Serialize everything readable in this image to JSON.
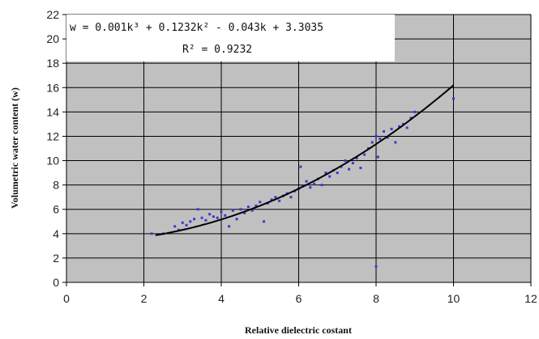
{
  "chart_data": {
    "type": "scatter",
    "title": "",
    "xlabel": "Relative dielectric costant",
    "ylabel": "Volumetric water content (w)",
    "xlim": [
      0,
      12
    ],
    "ylim": [
      0,
      22
    ],
    "x_ticks": [
      "0",
      "2",
      "4",
      "6",
      "8",
      "10",
      "12"
    ],
    "y_ticks": [
      "0",
      "2",
      "4",
      "6",
      "8",
      "10",
      "12",
      "14",
      "16",
      "18",
      "20",
      "22"
    ],
    "grid": true,
    "plot_background": "#c0c0c0",
    "point_color": "#3a3ad0",
    "trendline": {
      "type": "polynomial",
      "coefficients": [
        0.001,
        0.1232,
        -0.043,
        3.3035
      ],
      "x_range": [
        2.3,
        10
      ],
      "color": "#000000"
    },
    "annotation": {
      "equation": "w = 0.001k³ + 0.1232k² - 0.043k + 3.3035",
      "r2": "R² = 0.9232"
    },
    "points": [
      [
        2.2,
        4.0
      ],
      [
        2.5,
        4.0
      ],
      [
        2.8,
        4.6
      ],
      [
        2.9,
        4.3
      ],
      [
        3.0,
        4.9
      ],
      [
        3.1,
        4.7
      ],
      [
        3.2,
        5.0
      ],
      [
        3.3,
        5.2
      ],
      [
        3.4,
        6.0
      ],
      [
        3.5,
        5.3
      ],
      [
        3.6,
        5.1
      ],
      [
        3.7,
        5.6
      ],
      [
        3.8,
        5.4
      ],
      [
        3.9,
        5.3
      ],
      [
        4.0,
        5.8
      ],
      [
        4.1,
        5.5
      ],
      [
        4.2,
        4.6
      ],
      [
        4.3,
        5.9
      ],
      [
        4.4,
        5.2
      ],
      [
        4.5,
        6.0
      ],
      [
        4.6,
        5.7
      ],
      [
        4.7,
        6.2
      ],
      [
        4.8,
        5.9
      ],
      [
        4.9,
        6.3
      ],
      [
        5.0,
        6.6
      ],
      [
        5.1,
        5.0
      ],
      [
        5.2,
        6.5
      ],
      [
        5.3,
        6.8
      ],
      [
        5.4,
        7.0
      ],
      [
        5.5,
        6.7
      ],
      [
        5.6,
        7.1
      ],
      [
        5.7,
        7.3
      ],
      [
        5.8,
        7.0
      ],
      [
        5.9,
        7.5
      ],
      [
        6.0,
        7.7
      ],
      [
        6.05,
        9.5
      ],
      [
        6.1,
        7.9
      ],
      [
        6.2,
        8.3
      ],
      [
        6.3,
        7.8
      ],
      [
        6.4,
        8.1
      ],
      [
        6.5,
        8.5
      ],
      [
        6.6,
        8.0
      ],
      [
        6.7,
        9.0
      ],
      [
        6.8,
        8.7
      ],
      [
        6.9,
        9.2
      ],
      [
        7.0,
        9.0
      ],
      [
        7.1,
        9.5
      ],
      [
        7.2,
        10.0
      ],
      [
        7.3,
        9.3
      ],
      [
        7.4,
        9.8
      ],
      [
        7.5,
        10.2
      ],
      [
        7.6,
        9.4
      ],
      [
        7.7,
        10.5
      ],
      [
        7.8,
        11.0
      ],
      [
        7.9,
        11.5
      ],
      [
        8.0,
        12.0
      ],
      [
        8.0,
        1.3
      ],
      [
        8.05,
        10.3
      ],
      [
        8.1,
        11.8
      ],
      [
        8.2,
        12.4
      ],
      [
        8.3,
        11.9
      ],
      [
        8.4,
        12.6
      ],
      [
        8.5,
        11.5
      ],
      [
        8.6,
        12.8
      ],
      [
        8.7,
        13.0
      ],
      [
        8.8,
        12.7
      ],
      [
        8.9,
        13.5
      ],
      [
        9.0,
        14.0
      ],
      [
        10.0,
        15.1
      ]
    ]
  }
}
